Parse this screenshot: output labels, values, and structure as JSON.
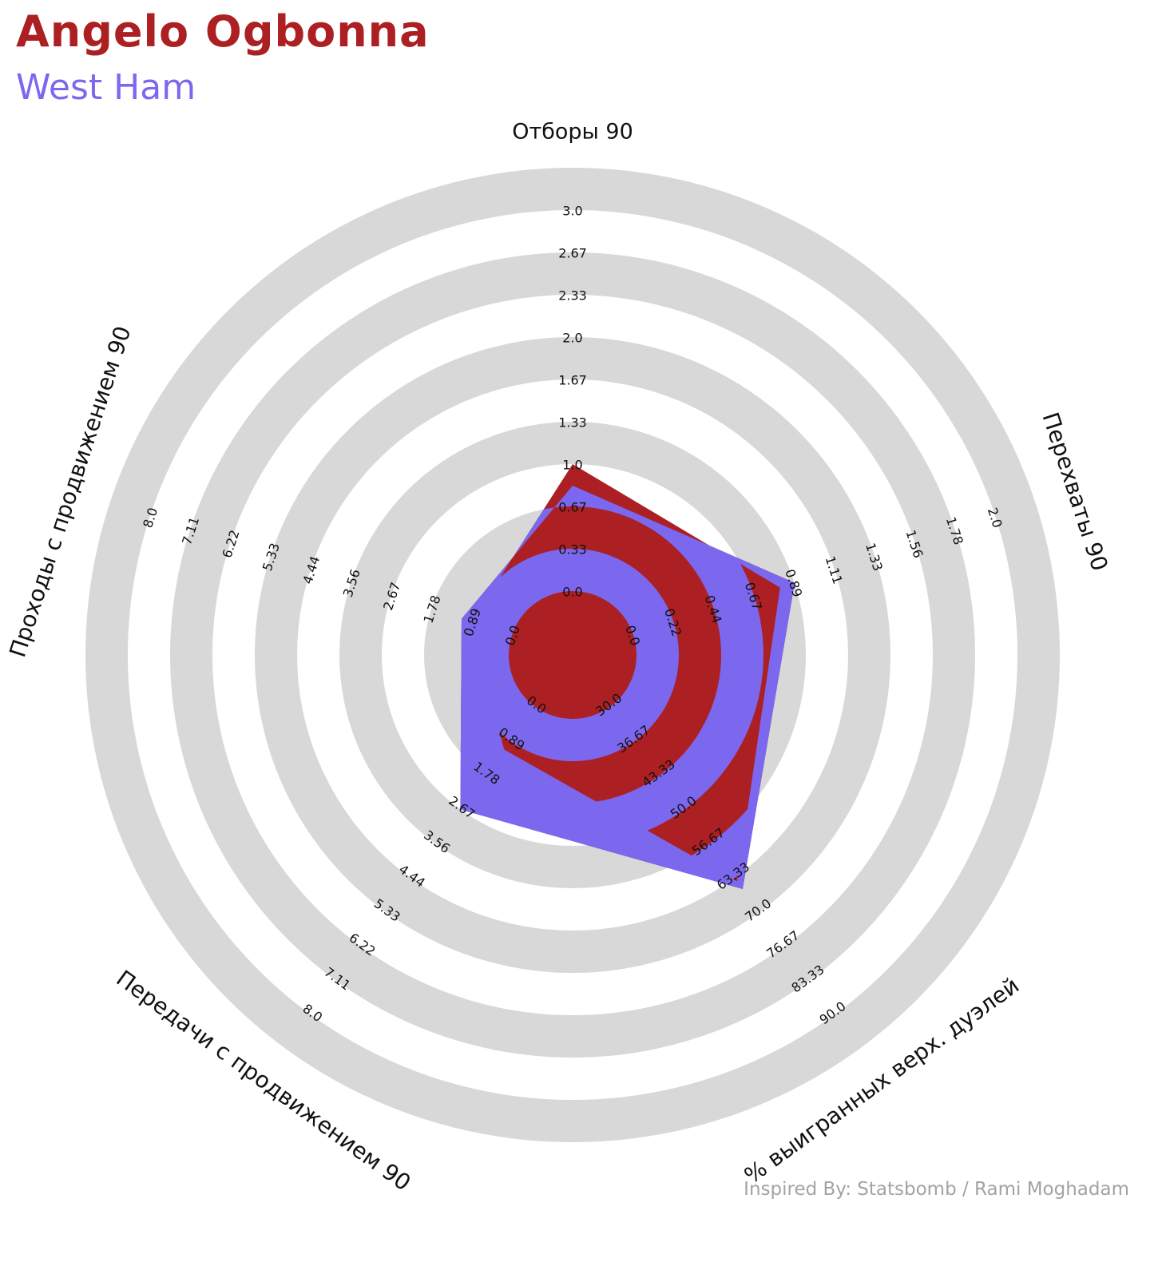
{
  "header": {
    "player_name": "Angelo Ogbonna",
    "team_name": "West Ham"
  },
  "footer": {
    "credit": "Inspired By: Statsbomb / Rami Moghadam"
  },
  "colors": {
    "player": "#ac1f22",
    "team": "#7b68ee",
    "ring_band": "#d8d8d8",
    "background": "#ffffff"
  },
  "chart_data": {
    "type": "radar",
    "axes": [
      {
        "label": "Отборы 90",
        "ticks": [
          "0.0",
          "0.33",
          "0.67",
          "1.0",
          "1.33",
          "1.67",
          "2.0",
          "2.33",
          "2.67",
          "3.0"
        ],
        "min": 0,
        "max": 3
      },
      {
        "label": "Перехваты 90",
        "ticks": [
          "0.0",
          "0.22",
          "0.44",
          "0.67",
          "0.89",
          "1.11",
          "1.33",
          "1.56",
          "1.78",
          "2.0"
        ],
        "min": 0,
        "max": 2
      },
      {
        "label": "% выигранных верх. дуэлей",
        "ticks": [
          "30.0",
          "36.67",
          "43.33",
          "50.0",
          "56.67",
          "63.33",
          "70.0",
          "76.67",
          "83.33",
          "90.0"
        ],
        "min": 30,
        "max": 90
      },
      {
        "label": "Передачи с продвижением 90",
        "ticks": [
          "0.0",
          "0.89",
          "1.78",
          "2.67",
          "3.56",
          "4.44",
          "5.33",
          "6.22",
          "7.11",
          "8.0"
        ],
        "min": 0,
        "max": 8
      },
      {
        "label": "Проходы с продвижением 90",
        "ticks": [
          "0.0",
          "0.89",
          "1.78",
          "2.67",
          "3.56",
          "4.44",
          "5.33",
          "6.22",
          "7.11",
          "8.0"
        ],
        "min": 0,
        "max": 8
      }
    ],
    "series": [
      {
        "values": [
          1.0,
          0.81,
          64.0,
          1.11,
          0.89
        ]
      },
      {
        "values": [
          0.83,
          0.89,
          65.5,
          2.67,
          1.11
        ]
      }
    ]
  }
}
